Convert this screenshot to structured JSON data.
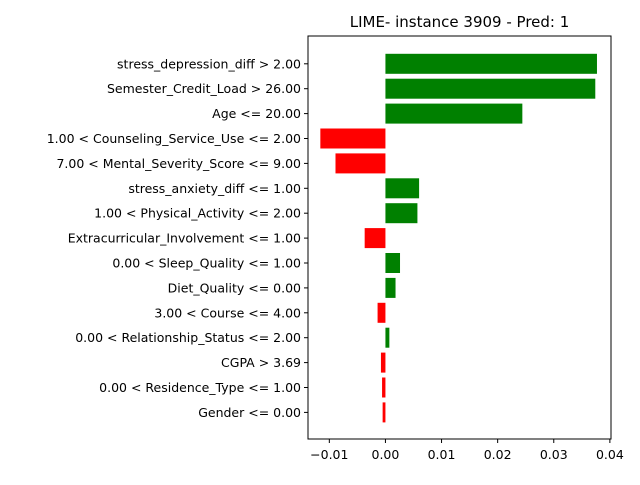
{
  "chart_data": {
    "type": "bar",
    "orientation": "horizontal",
    "title": "LIME- instance 3909 - Pred: 1",
    "xlabel": "",
    "ylabel": "",
    "xlim": [
      -0.0138,
      0.0402
    ],
    "xticks": [
      -0.01,
      0.0,
      0.01,
      0.02,
      0.03,
      0.04
    ],
    "xtick_labels": [
      "−0.01",
      "0.00",
      "0.01",
      "0.02",
      "0.03",
      "0.04"
    ],
    "grid": false,
    "positive_color": "#008000",
    "negative_color": "#ff0000",
    "categories": [
      "stress_depression_diff > 2.00",
      "Semester_Credit_Load > 26.00",
      "Age <= 20.00",
      "1.00 < Counseling_Service_Use <= 2.00",
      "7.00 < Mental_Severity_Score <= 9.00",
      "stress_anxiety_diff <= 1.00",
      "1.00 < Physical_Activity <= 2.00",
      "Extracurricular_Involvement <= 1.00",
      "0.00 < Sleep_Quality <= 1.00",
      "Diet_Quality <= 0.00",
      "3.00 < Course <= 4.00",
      "0.00 < Relationship_Status <= 2.00",
      "CGPA > 3.69",
      "0.00 < Residence_Type <= 1.00",
      "Gender <= 0.00"
    ],
    "values": [
      0.0377,
      0.0374,
      0.0244,
      -0.0116,
      -0.0089,
      0.006,
      0.0057,
      -0.0037,
      0.0026,
      0.0018,
      -0.0014,
      0.0007,
      -0.0008,
      -0.0006,
      -0.0005
    ]
  }
}
